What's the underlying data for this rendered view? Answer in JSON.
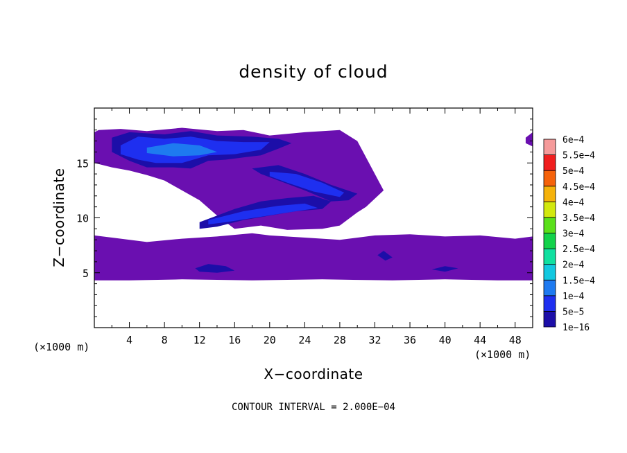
{
  "chart_data": {
    "type": "heatmap",
    "title": "density of cloud",
    "xlabel": "X−coordinate",
    "ylabel": "Z−coordinate",
    "x_unit": "(×1000 m)",
    "z_unit": "(×1000 m)",
    "xlim": [
      0,
      50
    ],
    "ylim": [
      0,
      20
    ],
    "x_ticks": [
      4,
      8,
      12,
      16,
      20,
      24,
      28,
      32,
      36,
      40,
      44,
      48
    ],
    "y_ticks": [
      5,
      10,
      15
    ],
    "contour_interval": "CONTOUR INTERVAL = 2.000E−04",
    "colorbar": {
      "levels": [
        {
          "label": "1e−16",
          "color": "#6a0fb0"
        },
        {
          "label": "5e−5",
          "color": "#1c0ea8"
        },
        {
          "label": "1e−4",
          "color": "#1e2ff0"
        },
        {
          "label": "1.5e−4",
          "color": "#1e7af0"
        },
        {
          "label": "2e−4",
          "color": "#12c8e0"
        },
        {
          "label": "2.5e−4",
          "color": "#10e0a0"
        },
        {
          "label": "3e−4",
          "color": "#12d24a"
        },
        {
          "label": "3.5e−4",
          "color": "#5ae01a"
        },
        {
          "label": "4e−4",
          "color": "#d2e80e"
        },
        {
          "label": "4.5e−4",
          "color": "#f5b20a"
        },
        {
          "label": "5e−4",
          "color": "#f5620a"
        },
        {
          "label": "5.5e−4",
          "color": "#f01e1e"
        },
        {
          "label": "6e−4",
          "color": "#f59a9a"
        }
      ]
    },
    "regions": [
      {
        "name": "low-cloud-layer",
        "level": 0,
        "x": [
          0,
          2,
          6,
          10,
          14,
          18,
          20,
          24,
          28,
          32,
          36,
          40,
          44,
          48,
          50,
          50,
          46,
          40,
          34,
          26,
          18,
          10,
          4,
          0
        ],
        "z": [
          8.4,
          8.2,
          7.8,
          8.1,
          8.3,
          8.6,
          8.4,
          8.2,
          8.0,
          8.4,
          8.5,
          8.3,
          8.4,
          8.1,
          8.3,
          4.3,
          4.3,
          4.4,
          4.3,
          4.4,
          4.3,
          4.4,
          4.3,
          4.3
        ]
      },
      {
        "name": "upper-cloud-mass",
        "level": 0,
        "x": [
          0,
          0.5,
          3,
          6,
          10,
          14,
          17,
          20,
          24,
          28,
          30,
          33,
          31,
          30,
          28,
          26,
          22,
          19,
          16,
          14,
          12,
          10,
          8,
          6,
          4,
          2,
          0
        ],
        "z": [
          17.8,
          18.0,
          18.1,
          17.9,
          18.2,
          17.9,
          18.0,
          17.5,
          17.8,
          18.0,
          17.0,
          12.5,
          11.0,
          10.5,
          9.3,
          9.0,
          8.9,
          9.3,
          9.0,
          10.2,
          11.6,
          12.5,
          13.4,
          13.9,
          14.3,
          14.6,
          15.0
        ]
      },
      {
        "name": "right-edge-cloud",
        "level": 0,
        "x": [
          49.2,
          50,
          50,
          49.2
        ],
        "z": [
          17.3,
          17.8,
          16.5,
          16.8
        ]
      },
      {
        "name": "upper-core-5e-5",
        "level": 1,
        "x": [
          2,
          4,
          8,
          11,
          14,
          18,
          21,
          22.5,
          21,
          19,
          17,
          15,
          13,
          11,
          9,
          6,
          4,
          2
        ],
        "z": [
          17.3,
          17.8,
          17.6,
          17.9,
          17.5,
          17.4,
          17.2,
          16.8,
          16.3,
          15.7,
          15.5,
          15.3,
          15.2,
          14.5,
          14.6,
          14.6,
          15.2,
          16.0
        ]
      },
      {
        "name": "mid-band-5e-5",
        "level": 1,
        "x": [
          18,
          21,
          24,
          27,
          30,
          29,
          27,
          24,
          21,
          19
        ],
        "z": [
          14.5,
          14.8,
          14.0,
          13.0,
          12.2,
          11.6,
          11.5,
          12.5,
          13.4,
          14.0
        ]
      },
      {
        "name": "low-band-5e-5",
        "level": 1,
        "x": [
          12,
          16,
          19,
          22,
          25,
          27,
          26,
          23,
          20,
          17,
          14,
          12
        ],
        "z": [
          9.6,
          10.8,
          11.5,
          11.8,
          12.0,
          11.5,
          10.8,
          10.6,
          10.2,
          9.8,
          9.2,
          9.0
        ]
      },
      {
        "name": "upper-core-1e-4",
        "level": 2,
        "x": [
          3,
          5,
          8,
          11,
          14,
          17,
          20,
          19,
          16,
          13,
          10,
          7,
          5,
          3
        ],
        "z": [
          16.6,
          17.4,
          17.2,
          17.4,
          17.0,
          16.9,
          16.9,
          16.2,
          15.8,
          15.7,
          15.0,
          15.0,
          15.3,
          15.8
        ]
      },
      {
        "name": "mid-band-1e-4",
        "level": 2,
        "x": [
          20,
          23,
          26,
          28.5,
          28,
          25,
          22,
          20
        ],
        "z": [
          14.2,
          14.0,
          13.2,
          12.3,
          11.9,
          12.4,
          13.2,
          13.8
        ]
      },
      {
        "name": "low-band-1e-4",
        "level": 2,
        "x": [
          13,
          17,
          21,
          24,
          25.5,
          23,
          19,
          15,
          13
        ],
        "z": [
          9.8,
          10.6,
          11.1,
          11.3,
          10.9,
          10.6,
          10.1,
          9.6,
          9.4
        ]
      },
      {
        "name": "core-1-5e-4",
        "level": 3,
        "x": [
          6,
          9,
          12,
          14,
          12,
          9,
          6
        ],
        "z": [
          16.4,
          16.8,
          16.6,
          16.0,
          15.7,
          15.6,
          15.9
        ]
      },
      {
        "name": "low-eddy-5e-5",
        "level": 1,
        "x": [
          11.5,
          13,
          15,
          16,
          14,
          12
        ],
        "z": [
          5.4,
          5.8,
          5.6,
          5.2,
          5.0,
          5.1
        ]
      },
      {
        "name": "small-eddy-5e-5",
        "level": 1,
        "x": [
          32.3,
          33.0,
          34.0,
          33.2
        ],
        "z": [
          6.6,
          7.0,
          6.4,
          6.1
        ]
      },
      {
        "name": "right-eddy-5e-5",
        "level": 1,
        "x": [
          38.5,
          40,
          41.5,
          40
        ],
        "z": [
          5.3,
          5.6,
          5.4,
          5.1
        ]
      }
    ]
  }
}
